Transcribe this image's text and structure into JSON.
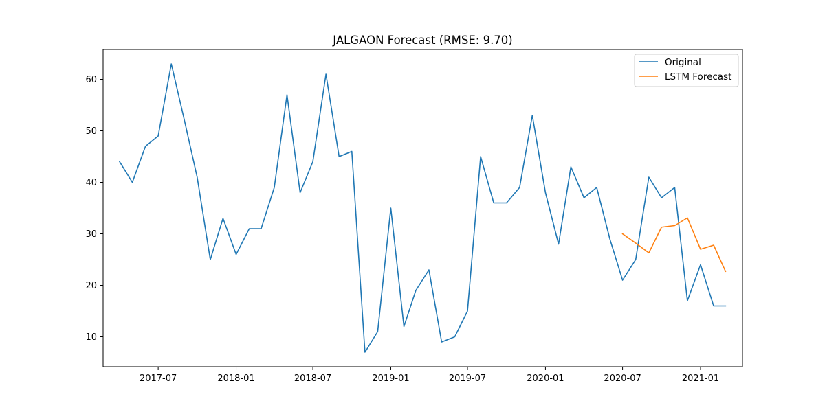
{
  "chart_data": {
    "type": "line",
    "title": "JALGAON Forecast (RMSE: 9.70)",
    "xlabel": "",
    "ylabel": "",
    "xlim": [
      "2017-02-21",
      "2021-04-10"
    ],
    "ylim": [
      4.2,
      65.8
    ],
    "x_ticks": [
      {
        "date": "2017-07-01",
        "label": "2017-07"
      },
      {
        "date": "2018-01-01",
        "label": "2018-01"
      },
      {
        "date": "2018-07-01",
        "label": "2018-07"
      },
      {
        "date": "2019-01-01",
        "label": "2019-01"
      },
      {
        "date": "2019-07-01",
        "label": "2019-07"
      },
      {
        "date": "2020-01-01",
        "label": "2020-01"
      },
      {
        "date": "2020-07-01",
        "label": "2020-07"
      },
      {
        "date": "2021-01-01",
        "label": "2021-01"
      }
    ],
    "y_ticks": [
      10,
      20,
      30,
      40,
      50,
      60
    ],
    "grid": false,
    "legend_position": "top-right",
    "series": [
      {
        "name": "Original",
        "color": "#1f77b4",
        "x": [
          "2017-04-01",
          "2017-05-01",
          "2017-06-01",
          "2017-07-01",
          "2017-08-01",
          "2017-09-01",
          "2017-10-01",
          "2017-11-01",
          "2017-12-01",
          "2018-01-01",
          "2018-02-01",
          "2018-03-01",
          "2018-04-01",
          "2018-05-01",
          "2018-06-01",
          "2018-07-01",
          "2018-08-01",
          "2018-09-01",
          "2018-10-01",
          "2018-11-01",
          "2018-12-01",
          "2019-01-01",
          "2019-02-01",
          "2019-03-01",
          "2019-04-01",
          "2019-05-01",
          "2019-06-01",
          "2019-07-01",
          "2019-08-01",
          "2019-09-01",
          "2019-10-01",
          "2019-11-01",
          "2019-12-01",
          "2020-01-01",
          "2020-02-01",
          "2020-03-01",
          "2020-04-01",
          "2020-05-01",
          "2020-06-01",
          "2020-07-01",
          "2020-08-01",
          "2020-09-01",
          "2020-10-01",
          "2020-11-01",
          "2020-12-01",
          "2021-01-01",
          "2021-02-01",
          "2021-03-01"
        ],
        "y": [
          44,
          40,
          47,
          49,
          63,
          52,
          41,
          25,
          33,
          26,
          31,
          31,
          39,
          57,
          38,
          44,
          61,
          45,
          46,
          7,
          11,
          35,
          12,
          19,
          23,
          9,
          10,
          15,
          45,
          36,
          36,
          39,
          53,
          38,
          28,
          43,
          37,
          39,
          29,
          21,
          25,
          41,
          37,
          39,
          17,
          24,
          16,
          16
        ]
      },
      {
        "name": "LSTM Forecast",
        "color": "#ff7f0e",
        "x": [
          "2020-07-01",
          "2020-08-01",
          "2020-09-01",
          "2020-10-01",
          "2020-11-01",
          "2020-12-01",
          "2021-01-01",
          "2021-02-01",
          "2021-03-01"
        ],
        "y": [
          30.0,
          28.2,
          26.3,
          31.3,
          31.6,
          33.1,
          27.0,
          27.8,
          22.7
        ]
      }
    ]
  }
}
